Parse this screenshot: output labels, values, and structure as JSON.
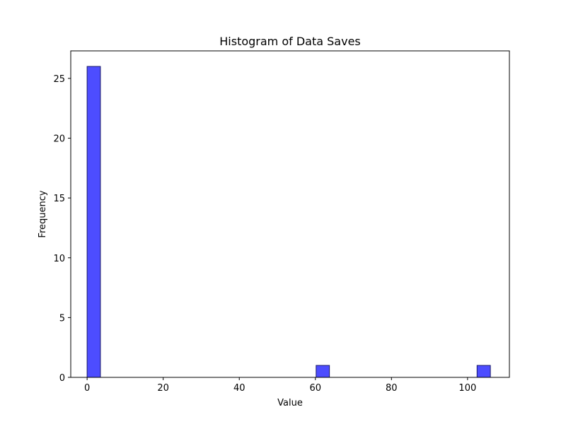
{
  "chart_data": {
    "type": "bar",
    "title": "Histogram of Data Saves",
    "xlabel": "Value",
    "ylabel": "Frequency",
    "xlim": [
      -4.3,
      111
    ],
    "ylim": [
      0,
      27.3
    ],
    "xticks": [
      0,
      20,
      40,
      60,
      80,
      100
    ],
    "yticks": [
      0,
      5,
      10,
      15,
      20,
      25
    ],
    "bin_width": 3.5,
    "bins": [
      {
        "x0": 0.0,
        "x1": 3.5,
        "count": 26
      },
      {
        "x0": 60.2,
        "x1": 63.7,
        "count": 1
      },
      {
        "x0": 102.5,
        "x1": 106.0,
        "count": 1
      }
    ],
    "bar_color": "#4d4dff",
    "edge_color": "#1a1a66",
    "grid": false
  }
}
